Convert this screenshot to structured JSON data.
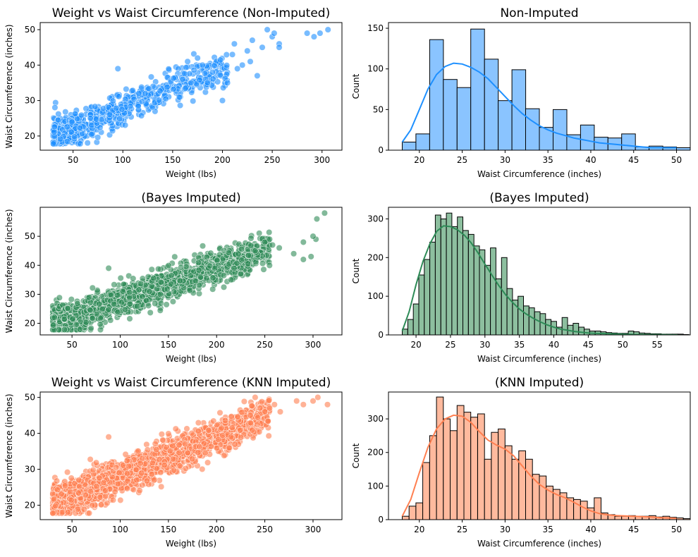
{
  "chart_data": [
    {
      "id": "scatter-nonimputed",
      "type": "scatter",
      "title": "Weight vs Waist Circumference (Non-Imputed)",
      "xlabel": "Weight (lbs)",
      "ylabel": "Waist Circumference (inches)",
      "xlim": [
        17,
        320
      ],
      "ylim": [
        16,
        52
      ],
      "xticks": [
        50,
        100,
        150,
        200,
        250,
        300
      ],
      "yticks": [
        20,
        30,
        40,
        50
      ],
      "color": "#1E90FF",
      "series": [
        {
          "cloud": {
            "count": 650,
            "xmin": 30,
            "xmax": 205,
            "intercept": 16.5,
            "slope": 0.113,
            "spread": 2.6,
            "seed": 11
          },
          "points": [
            [
              95,
              39
            ],
            [
              165,
              41
            ],
            [
              175,
              42
            ],
            [
              180,
              40
            ],
            [
              190,
              38
            ],
            [
              200,
              30
            ],
            [
              205,
              35
            ],
            [
              210,
              43
            ],
            [
              212,
              46
            ],
            [
              220,
              40
            ],
            [
              225,
              44
            ],
            [
              228,
              41
            ],
            [
              230,
              47
            ],
            [
              235,
              37
            ],
            [
              240,
              45
            ],
            [
              245,
              50
            ],
            [
              250,
              48
            ],
            [
              252,
              49
            ],
            [
              257,
              46
            ],
            [
              257,
              45
            ],
            [
              285,
              49
            ],
            [
              292,
              48
            ],
            [
              298,
              49
            ],
            [
              306,
              50
            ],
            [
              215,
              39
            ],
            [
              185,
              35
            ]
          ]
        }
      ]
    },
    {
      "id": "hist-nonimputed",
      "type": "bar",
      "title": "Non-Imputed",
      "xlabel": "Waist Circumference (inches)",
      "ylabel": "Count",
      "xlim": [
        16.4,
        51.6
      ],
      "ylim": [
        0,
        157
      ],
      "xticks": [
        20,
        25,
        30,
        35,
        40,
        45,
        50
      ],
      "yticks": [
        0,
        50,
        100,
        150
      ],
      "color": "#8AC4FF",
      "line_color": "#1E90FF",
      "bin_start": 18,
      "bin_width": 1.6,
      "values": [
        10,
        20,
        136,
        87,
        77,
        149,
        112,
        61,
        99,
        51,
        28,
        50,
        19,
        31,
        16,
        15,
        20,
        4,
        5,
        4,
        3,
        2,
        5
      ],
      "kde": [
        [
          18,
          10
        ],
        [
          19,
          25
        ],
        [
          20,
          50
        ],
        [
          21,
          75
        ],
        [
          22,
          93
        ],
        [
          23,
          103
        ],
        [
          24,
          107
        ],
        [
          25,
          106
        ],
        [
          26,
          102
        ],
        [
          27,
          96
        ],
        [
          28,
          88
        ],
        [
          29,
          77
        ],
        [
          30,
          66
        ],
        [
          31,
          55
        ],
        [
          32,
          45
        ],
        [
          33,
          37
        ],
        [
          34,
          30
        ],
        [
          35,
          25
        ],
        [
          36,
          21
        ],
        [
          37,
          18
        ],
        [
          38,
          15
        ],
        [
          39,
          13
        ],
        [
          40,
          11
        ],
        [
          41,
          9
        ],
        [
          42,
          8
        ],
        [
          43,
          7
        ],
        [
          44,
          6
        ],
        [
          45,
          5
        ],
        [
          46,
          4
        ],
        [
          47,
          3
        ],
        [
          48,
          3
        ],
        [
          49,
          3
        ],
        [
          50,
          3
        ]
      ]
    },
    {
      "id": "scatter-bayes",
      "type": "scatter",
      "title": "(Bayes Imputed)",
      "xlabel": "Weight (lbs)",
      "ylabel": "Waist Circumference (inches)",
      "xlim": [
        17,
        330
      ],
      "ylim": [
        16,
        60
      ],
      "xticks": [
        50,
        100,
        150,
        200,
        250,
        300
      ],
      "yticks": [
        20,
        30,
        40,
        50
      ],
      "color": "#2E8B57",
      "series": [
        {
          "cloud": {
            "count": 1800,
            "xmin": 30,
            "xmax": 255,
            "intercept": 16.5,
            "slope": 0.113,
            "spread": 2.7,
            "seed": 23
          },
          "points": [
            [
              88,
              39
            ],
            [
              215,
              35
            ],
            [
              225,
              37
            ],
            [
              240,
              45
            ],
            [
              250,
              48
            ],
            [
              255,
              49
            ],
            [
              258,
              47
            ],
            [
              265,
              46
            ],
            [
              280,
              44
            ],
            [
              290,
              42
            ],
            [
              298,
              43
            ],
            [
              303,
              49
            ],
            [
              304,
              56
            ],
            [
              312,
              58
            ],
            [
              300,
              50
            ],
            [
              290,
              48
            ]
          ]
        }
      ]
    },
    {
      "id": "hist-bayes",
      "type": "bar",
      "title": "(Bayes Imputed)",
      "xlabel": "Waist Circumference (inches)",
      "ylabel": "Count",
      "xlim": [
        16.0,
        59.8
      ],
      "ylim": [
        0,
        330
      ],
      "xticks": [
        20,
        25,
        30,
        35,
        40,
        45,
        50,
        55
      ],
      "yticks": [
        0,
        100,
        200,
        300
      ],
      "color": "#8DBF9F",
      "line_color": "#2E8B57",
      "bin_start": 18,
      "bin_width": 0.8,
      "values": [
        15,
        40,
        80,
        155,
        195,
        240,
        310,
        300,
        315,
        280,
        305,
        270,
        260,
        230,
        220,
        180,
        225,
        145,
        200,
        120,
        90,
        100,
        75,
        70,
        60,
        55,
        40,
        35,
        20,
        45,
        25,
        30,
        20,
        15,
        10,
        10,
        8,
        6,
        5,
        4,
        4,
        10,
        8,
        5,
        4,
        3,
        3,
        2,
        2,
        2,
        2,
        1
      ],
      "kde": [
        [
          18,
          10
        ],
        [
          19,
          60
        ],
        [
          20,
          130
        ],
        [
          21,
          190
        ],
        [
          22,
          235
        ],
        [
          23,
          268
        ],
        [
          24,
          282
        ],
        [
          25,
          280
        ],
        [
          26,
          272
        ],
        [
          27,
          258
        ],
        [
          28,
          238
        ],
        [
          29,
          212
        ],
        [
          30,
          183
        ],
        [
          31,
          155
        ],
        [
          32,
          128
        ],
        [
          33,
          104
        ],
        [
          34,
          84
        ],
        [
          35,
          67
        ],
        [
          36,
          54
        ],
        [
          37,
          43
        ],
        [
          38,
          34
        ],
        [
          39,
          26
        ],
        [
          40,
          20
        ],
        [
          41,
          15
        ],
        [
          42,
          12
        ],
        [
          43,
          9
        ],
        [
          44,
          7
        ],
        [
          45,
          5
        ],
        [
          46,
          4
        ],
        [
          48,
          3
        ],
        [
          50,
          2
        ],
        [
          52,
          1
        ],
        [
          55,
          1
        ],
        [
          58,
          0
        ]
      ]
    },
    {
      "id": "scatter-knn",
      "type": "scatter",
      "title": "Weight vs Waist Circumference (KNN Imputed)",
      "xlabel": "Weight (lbs)",
      "ylabel": "Waist Circumference (inches)",
      "xlim": [
        17,
        330
      ],
      "ylim": [
        16,
        51.5
      ],
      "xticks": [
        50,
        100,
        150,
        200,
        250,
        300
      ],
      "yticks": [
        20,
        30,
        40,
        50
      ],
      "color": "#FF7F50",
      "series": [
        {
          "cloud": {
            "count": 1800,
            "xmin": 30,
            "xmax": 255,
            "intercept": 16.5,
            "slope": 0.113,
            "spread": 2.5,
            "seed": 37
          },
          "points": [
            [
              88,
              39
            ],
            [
              215,
              39
            ],
            [
              235,
              45
            ],
            [
              240,
              50
            ],
            [
              245,
              47
            ],
            [
              250,
              46
            ],
            [
              255,
              47
            ],
            [
              260,
              48
            ],
            [
              266,
              46
            ],
            [
              283,
              49
            ],
            [
              290,
              48
            ],
            [
              300,
              49
            ],
            [
              305,
              50
            ],
            [
              315,
              48
            ]
          ]
        }
      ]
    },
    {
      "id": "hist-knn",
      "type": "bar",
      "title": "(KNN Imputed)",
      "xlabel": "Waist Circumference (inches)",
      "ylabel": "Count",
      "xlim": [
        16.4,
        51.6
      ],
      "ylim": [
        0,
        380
      ],
      "xticks": [
        20,
        25,
        30,
        35,
        40,
        45,
        50
      ],
      "yticks": [
        0,
        100,
        200,
        300
      ],
      "color": "#FFBA9E",
      "line_color": "#FF7F50",
      "bin_start": 18,
      "bin_width": 0.8,
      "values": [
        10,
        40,
        50,
        170,
        250,
        365,
        300,
        265,
        340,
        320,
        305,
        315,
        180,
        260,
        270,
        220,
        180,
        205,
        180,
        135,
        130,
        100,
        90,
        80,
        65,
        60,
        55,
        35,
        65,
        20,
        15,
        10,
        10,
        12,
        10,
        10,
        12,
        8,
        10,
        7,
        5,
        3,
        3,
        2
      ],
      "kde": [
        [
          18,
          10
        ],
        [
          19,
          60
        ],
        [
          20,
          140
        ],
        [
          21,
          215
        ],
        [
          22,
          270
        ],
        [
          23,
          300
        ],
        [
          24,
          311
        ],
        [
          25,
          308
        ],
        [
          26,
          290
        ],
        [
          27,
          262
        ],
        [
          28,
          237
        ],
        [
          29,
          222
        ],
        [
          30,
          210
        ],
        [
          31,
          190
        ],
        [
          32,
          160
        ],
        [
          33,
          130
        ],
        [
          34,
          105
        ],
        [
          35,
          88
        ],
        [
          36,
          75
        ],
        [
          37,
          65
        ],
        [
          38,
          52
        ],
        [
          39,
          38
        ],
        [
          40,
          26
        ],
        [
          41,
          18
        ],
        [
          42,
          14
        ],
        [
          43,
          12
        ],
        [
          44,
          11
        ],
        [
          45,
          10
        ],
        [
          46,
          9
        ],
        [
          47,
          8
        ],
        [
          48,
          6
        ],
        [
          49,
          5
        ],
        [
          50,
          4
        ]
      ]
    }
  ]
}
